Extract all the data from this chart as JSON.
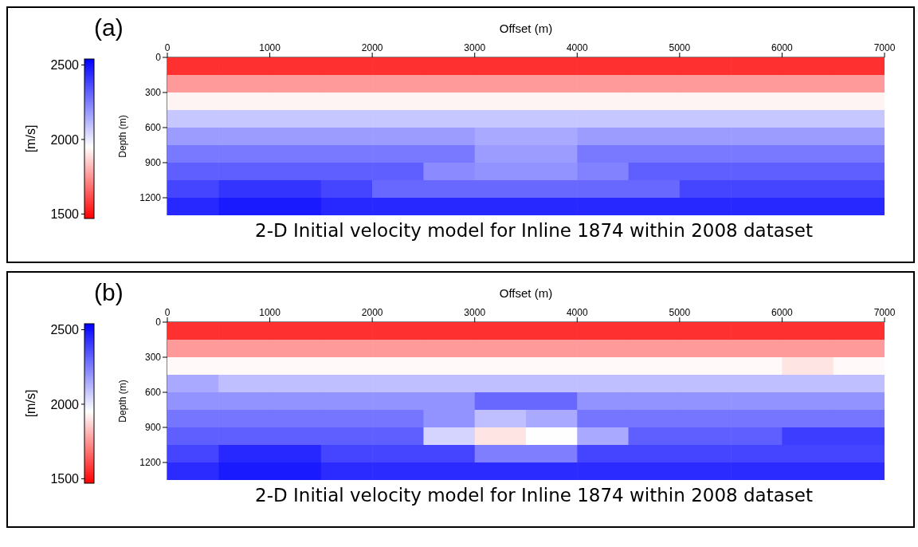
{
  "chart_data": [
    {
      "type": "heatmap",
      "title": "2-D Initial velocity model for Inline 1874 within 2008 dataset",
      "annotations": [
        "(a)"
      ],
      "xlabel": "Offset (m)",
      "ylabel": "Depth (m)",
      "clabel": "[m/s]",
      "xlim": [
        0,
        7000
      ],
      "xticks": [
        0,
        1000,
        2000,
        3000,
        4000,
        5000,
        6000,
        7000
      ],
      "ylim": [
        1350,
        0
      ],
      "yticks": [
        0,
        300,
        600,
        900,
        1200
      ],
      "clim": [
        1470,
        2540
      ],
      "cticks": [
        1500,
        2000,
        2500
      ],
      "cells": [
        [
          1560,
          1560,
          1560,
          1560,
          1560,
          1560,
          1560,
          1560,
          1560,
          1560,
          1560,
          1560,
          1560,
          1560
        ],
        [
          1760,
          1760,
          1760,
          1760,
          1760,
          1760,
          1760,
          1760,
          1760,
          1760,
          1760,
          1760,
          1760,
          1760
        ],
        [
          1930,
          1930,
          1930,
          1930,
          1930,
          1930,
          1930,
          1930,
          1930,
          1930,
          1930,
          1930,
          1930,
          1930
        ],
        [
          2080,
          2080,
          2080,
          2080,
          2080,
          2080,
          2080,
          2080,
          2080,
          2080,
          2080,
          2080,
          2080,
          2080
        ],
        [
          2180,
          2180,
          2180,
          2180,
          2180,
          2180,
          2150,
          2150,
          2180,
          2180,
          2180,
          2180,
          2180,
          2180
        ],
        [
          2260,
          2260,
          2260,
          2260,
          2260,
          2260,
          2180,
          2180,
          2260,
          2260,
          2260,
          2260,
          2260,
          2260
        ],
        [
          2320,
          2320,
          2320,
          2320,
          2320,
          2220,
          2200,
          2200,
          2240,
          2320,
          2320,
          2320,
          2320,
          2320
        ],
        [
          2380,
          2420,
          2420,
          2380,
          2300,
          2300,
          2300,
          2300,
          2300,
          2300,
          2380,
          2380,
          2380,
          2380
        ],
        [
          2450,
          2480,
          2480,
          2450,
          2450,
          2450,
          2450,
          2450,
          2450,
          2450,
          2450,
          2450,
          2450,
          2450
        ]
      ]
    },
    {
      "type": "heatmap",
      "title": "2-D Initial velocity model for Inline 1874 within 2008 dataset",
      "annotations": [
        "(b)"
      ],
      "xlabel": "Offset (m)",
      "ylabel": "Depth (m)",
      "clabel": "[m/s]",
      "xlim": [
        0,
        7000
      ],
      "xticks": [
        0,
        1000,
        2000,
        3000,
        4000,
        5000,
        6000,
        7000
      ],
      "ylim": [
        1350,
        0
      ],
      "yticks": [
        0,
        300,
        600,
        900,
        1200
      ],
      "clim": [
        1470,
        2540
      ],
      "cticks": [
        1500,
        2000,
        2500
      ],
      "cells": [
        [
          1560,
          1560,
          1560,
          1560,
          1560,
          1560,
          1560,
          1560,
          1560,
          1560,
          1560,
          1560,
          1560,
          1560
        ],
        [
          1760,
          1760,
          1760,
          1760,
          1760,
          1760,
          1760,
          1760,
          1760,
          1760,
          1760,
          1760,
          1760,
          1760
        ],
        [
          1940,
          1940,
          1940,
          1940,
          1940,
          1940,
          1940,
          1940,
          1940,
          1940,
          1940,
          1940,
          1900,
          1940
        ],
        [
          2150,
          2100,
          2100,
          2100,
          2100,
          2100,
          2100,
          2100,
          2100,
          2100,
          2100,
          2100,
          2100,
          2100
        ],
        [
          2200,
          2200,
          2200,
          2200,
          2200,
          2200,
          2300,
          2300,
          2200,
          2200,
          2200,
          2200,
          2200,
          2200
        ],
        [
          2270,
          2270,
          2270,
          2270,
          2270,
          2200,
          2100,
          2150,
          2270,
          2270,
          2270,
          2270,
          2270,
          2270
        ],
        [
          2320,
          2320,
          2320,
          2320,
          2320,
          2050,
          1900,
          1950,
          2150,
          2320,
          2320,
          2320,
          2400,
          2400
        ],
        [
          2380,
          2450,
          2450,
          2380,
          2380,
          2380,
          2250,
          2250,
          2380,
          2380,
          2380,
          2380,
          2380,
          2380
        ],
        [
          2440,
          2480,
          2480,
          2440,
          2440,
          2440,
          2440,
          2440,
          2440,
          2440,
          2440,
          2440,
          2440,
          2440
        ]
      ]
    }
  ]
}
